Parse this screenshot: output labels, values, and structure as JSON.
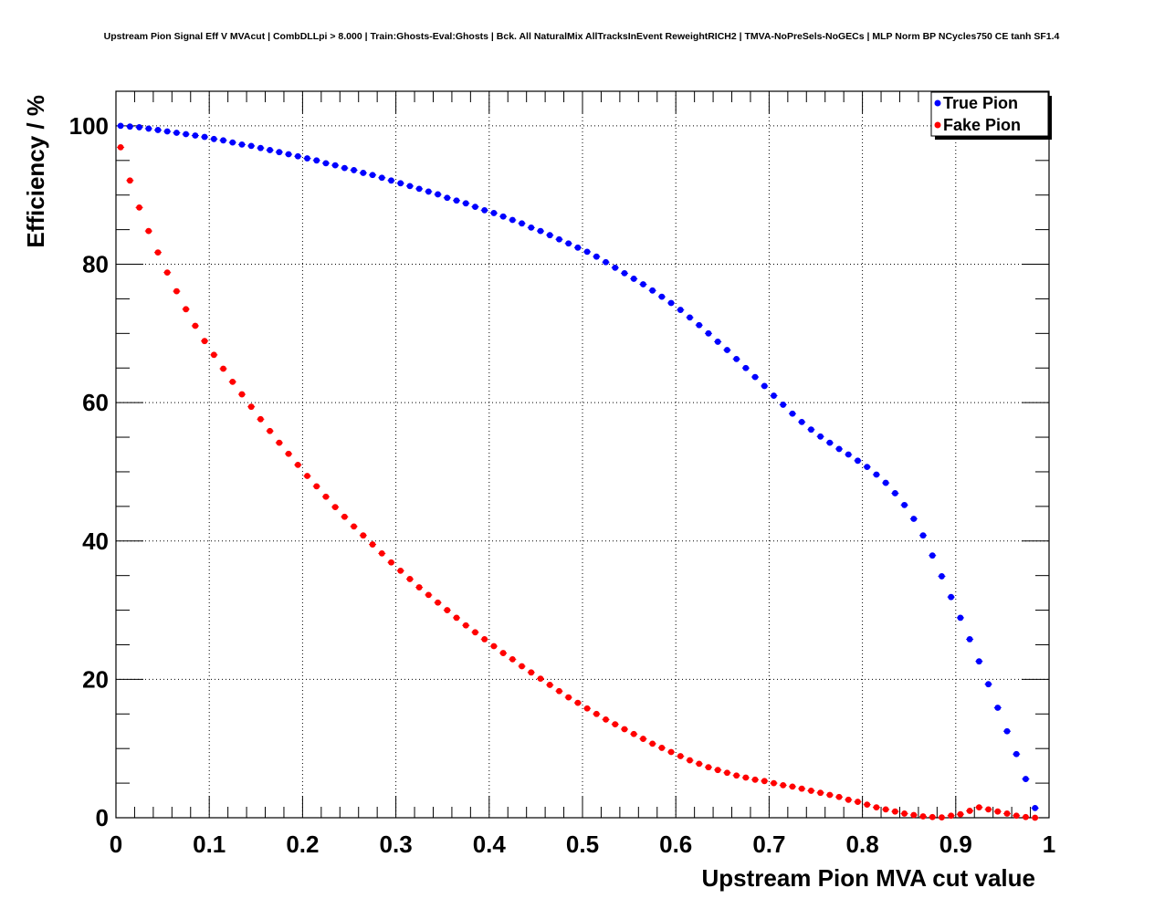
{
  "chart_data": {
    "type": "scatter",
    "title": "Upstream Pion Signal Eff V MVAcut | CombDLLpi > 8.000 | Train:Ghosts-Eval:Ghosts | Bck. All NaturalMix AllTracksInEvent ReweightRICH2 | TMVA-NoPreSels-NoGECs | MLP Norm BP NCycles750 CE tanh SF1.4",
    "xlabel": "Upstream Pion MVA cut value",
    "ylabel": "Efficiency / %",
    "xlim": [
      0,
      1
    ],
    "ylim": [
      0,
      105
    ],
    "grid": true,
    "legend_position": "top-right",
    "x_ticks": [
      "0",
      "0.1",
      "0.2",
      "0.3",
      "0.4",
      "0.5",
      "0.6",
      "0.7",
      "0.8",
      "0.9",
      "1"
    ],
    "y_ticks": [
      "0",
      "20",
      "40",
      "60",
      "80",
      "100"
    ],
    "series": [
      {
        "name": "True Pion",
        "color": "#0000ff",
        "x": [
          0.005,
          0.015,
          0.025,
          0.035,
          0.045,
          0.055,
          0.065,
          0.075,
          0.085,
          0.095,
          0.105,
          0.115,
          0.125,
          0.135,
          0.145,
          0.155,
          0.165,
          0.175,
          0.185,
          0.195,
          0.205,
          0.215,
          0.225,
          0.235,
          0.245,
          0.255,
          0.265,
          0.275,
          0.285,
          0.295,
          0.305,
          0.315,
          0.325,
          0.335,
          0.345,
          0.355,
          0.365,
          0.375,
          0.385,
          0.395,
          0.405,
          0.415,
          0.425,
          0.435,
          0.445,
          0.455,
          0.465,
          0.475,
          0.485,
          0.495,
          0.505,
          0.515,
          0.525,
          0.535,
          0.545,
          0.555,
          0.565,
          0.575,
          0.585,
          0.595,
          0.605,
          0.615,
          0.625,
          0.635,
          0.645,
          0.655,
          0.665,
          0.675,
          0.685,
          0.695,
          0.705,
          0.715,
          0.725,
          0.735,
          0.745,
          0.755,
          0.765,
          0.775,
          0.785,
          0.795,
          0.805,
          0.815,
          0.825,
          0.835,
          0.845,
          0.855,
          0.865,
          0.875,
          0.885,
          0.895,
          0.905,
          0.915,
          0.925,
          0.935,
          0.945,
          0.955,
          0.965,
          0.975,
          0.985
        ],
        "y": [
          100,
          99.9,
          99.8,
          99.6,
          99.4,
          99.2,
          99.0,
          98.8,
          98.6,
          98.4,
          98.1,
          97.9,
          97.6,
          97.3,
          97.1,
          96.8,
          96.5,
          96.2,
          95.9,
          95.6,
          95.3,
          95.0,
          94.6,
          94.3,
          93.9,
          93.6,
          93.2,
          92.9,
          92.5,
          92.1,
          91.7,
          91.3,
          90.9,
          90.5,
          90.1,
          89.6,
          89.2,
          88.8,
          88.3,
          87.8,
          87.4,
          86.9,
          86.4,
          85.9,
          85.3,
          84.8,
          84.2,
          83.6,
          83.0,
          82.4,
          81.8,
          81.1,
          80.3,
          79.5,
          78.7,
          77.9,
          77.1,
          76.2,
          75.3,
          74.4,
          73.4,
          72.3,
          71.2,
          70.0,
          68.8,
          67.6,
          66.3,
          65.0,
          63.7,
          62.4,
          61.0,
          59.7,
          58.4,
          57.2,
          56.1,
          55.1,
          54.2,
          53.3,
          52.5,
          51.6,
          50.7,
          49.6,
          48.4,
          46.9,
          45.2,
          43.2,
          40.8,
          37.9,
          34.9,
          31.9,
          28.9,
          25.8,
          22.6,
          19.3,
          15.9,
          12.5,
          9.2,
          5.6,
          1.4
        ]
      },
      {
        "name": "Fake Pion",
        "color": "#ff0000",
        "x": [
          0.005,
          0.015,
          0.025,
          0.035,
          0.045,
          0.055,
          0.065,
          0.075,
          0.085,
          0.095,
          0.105,
          0.115,
          0.125,
          0.135,
          0.145,
          0.155,
          0.165,
          0.175,
          0.185,
          0.195,
          0.205,
          0.215,
          0.225,
          0.235,
          0.245,
          0.255,
          0.265,
          0.275,
          0.285,
          0.295,
          0.305,
          0.315,
          0.325,
          0.335,
          0.345,
          0.355,
          0.365,
          0.375,
          0.385,
          0.395,
          0.405,
          0.415,
          0.425,
          0.435,
          0.445,
          0.455,
          0.465,
          0.475,
          0.485,
          0.495,
          0.505,
          0.515,
          0.525,
          0.535,
          0.545,
          0.555,
          0.565,
          0.575,
          0.585,
          0.595,
          0.605,
          0.615,
          0.625,
          0.635,
          0.645,
          0.655,
          0.665,
          0.675,
          0.685,
          0.695,
          0.705,
          0.715,
          0.725,
          0.735,
          0.745,
          0.755,
          0.765,
          0.775,
          0.785,
          0.795,
          0.805,
          0.815,
          0.825,
          0.835,
          0.845,
          0.855,
          0.865,
          0.875,
          0.885,
          0.895,
          0.905,
          0.915,
          0.925,
          0.935,
          0.945,
          0.955,
          0.965,
          0.975,
          0.985
        ],
        "y": [
          96.9,
          92.1,
          88.2,
          84.8,
          81.7,
          78.8,
          76.1,
          73.5,
          71.1,
          68.9,
          66.9,
          64.9,
          63.0,
          61.2,
          59.4,
          57.6,
          55.9,
          54.2,
          52.6,
          51.0,
          49.4,
          47.9,
          46.4,
          44.9,
          43.5,
          42.1,
          40.8,
          39.5,
          38.2,
          36.9,
          35.7,
          34.5,
          33.3,
          32.2,
          31.1,
          30.0,
          28.9,
          27.8,
          26.8,
          25.8,
          24.8,
          23.8,
          22.9,
          21.9,
          21.0,
          20.1,
          19.2,
          18.3,
          17.4,
          16.6,
          15.8,
          15.0,
          14.2,
          13.5,
          12.8,
          12.1,
          11.4,
          10.7,
          10.1,
          9.5,
          8.9,
          8.3,
          7.8,
          7.3,
          6.9,
          6.5,
          6.1,
          5.8,
          5.5,
          5.3,
          5.0,
          4.7,
          4.5,
          4.2,
          3.9,
          3.6,
          3.3,
          3.0,
          2.6,
          2.3,
          1.9,
          1.5,
          1.2,
          0.9,
          0.6,
          0.4,
          0.2,
          0.1,
          0.05,
          0.3,
          0.5,
          1.0,
          1.5,
          1.2,
          0.9,
          0.6,
          0.3,
          0.1,
          0.0
        ]
      }
    ]
  }
}
